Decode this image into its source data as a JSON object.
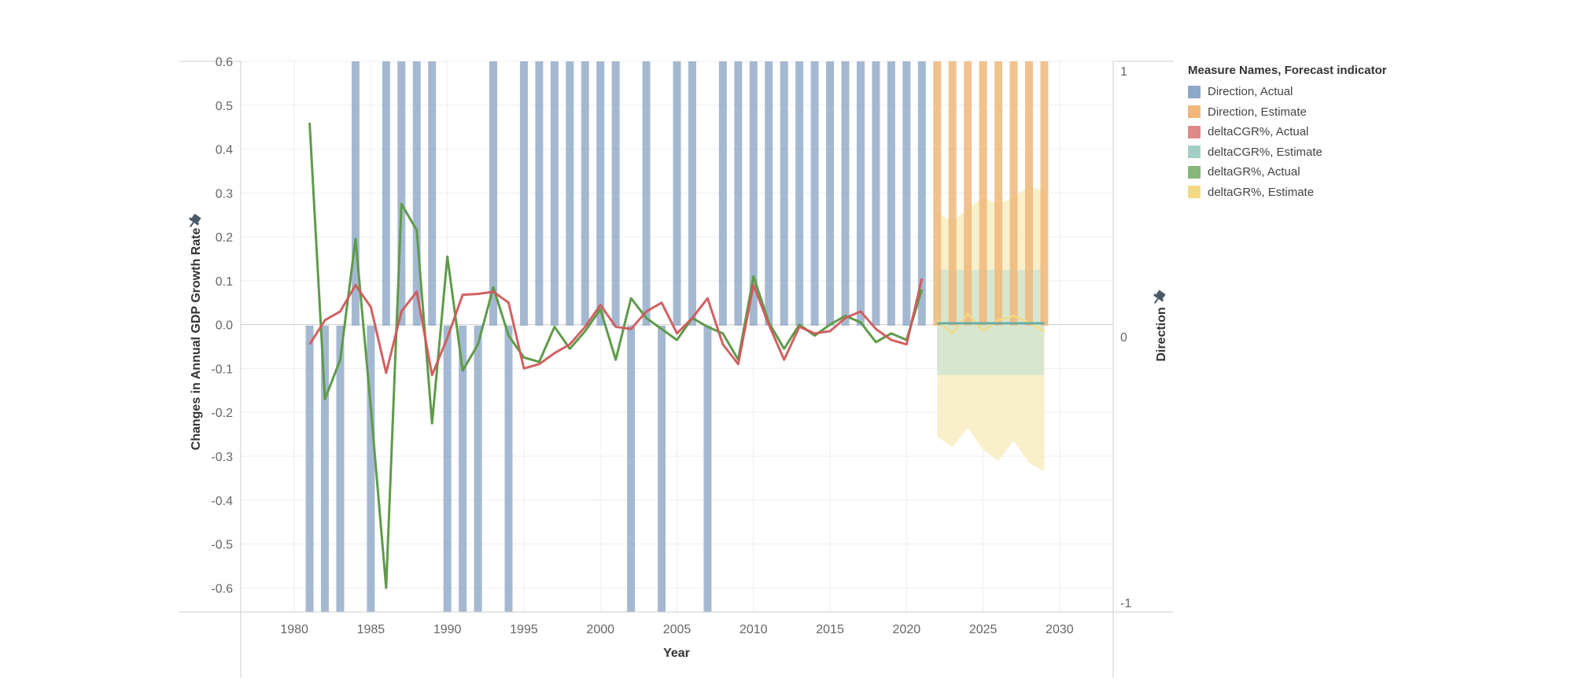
{
  "legend": {
    "title": "Measure Names, Forecast indicator",
    "items": [
      {
        "label": "Direction, Actual",
        "color": "#8da7c6"
      },
      {
        "label": "Direction, Estimate",
        "color": "#f0b77a"
      },
      {
        "label": "deltaCGR%, Actual",
        "color": "#df8888"
      },
      {
        "label": "deltaCGR%, Estimate",
        "color": "#a3cec6"
      },
      {
        "label": "deltaGR%, Actual",
        "color": "#88b67a"
      },
      {
        "label": "deltaGR%, Estimate",
        "color": "#f2da84"
      }
    ]
  },
  "chart_data": {
    "type": "combo",
    "xlabel": "Year",
    "ylabel": "Changes in Annual GDP Growth Rate",
    "y2label": "Direction",
    "xlim": [
      1976.5,
      2033.5
    ],
    "ylim": [
      -0.655,
      0.6
    ],
    "y2lim": [
      -1,
      1
    ],
    "x_ticks": [
      1980,
      1985,
      1990,
      1995,
      2000,
      2005,
      2010,
      2015,
      2020,
      2025,
      2030
    ],
    "y_ticks": [
      0.6,
      0.5,
      0.4,
      0.3,
      0.2,
      0.1,
      0.0,
      -0.1,
      -0.2,
      -0.3,
      -0.4,
      -0.5,
      -0.6
    ],
    "y_tick_labels": [
      "0.6",
      "0.5",
      "0.4",
      "0.3",
      "0.2",
      "0.1",
      "0.0",
      "-0.1",
      "-0.2",
      "-0.3",
      "-0.4",
      "-0.5",
      "-0.6"
    ],
    "y2_ticks": [
      1,
      0,
      -1
    ],
    "y2_tick_labels": [
      "1",
      "0",
      "-1"
    ],
    "grid": true,
    "legend_position": "right",
    "direction_actual": {
      "years": [
        1981,
        1982,
        1983,
        1984,
        1985,
        1986,
        1987,
        1988,
        1989,
        1990,
        1991,
        1992,
        1993,
        1994,
        1995,
        1996,
        1997,
        1998,
        1999,
        2000,
        2001,
        2002,
        2003,
        2004,
        2005,
        2006,
        2007,
        2008,
        2009,
        2010,
        2011,
        2012,
        2013,
        2014,
        2015,
        2016,
        2017,
        2018,
        2019,
        2020,
        2021
      ],
      "values": [
        -1,
        -1,
        -1,
        1,
        -1,
        1,
        1,
        1,
        1,
        -1,
        -1,
        -1,
        1,
        -1,
        1,
        1,
        1,
        1,
        1,
        1,
        1,
        -1,
        1,
        -1,
        1,
        1,
        -1,
        1,
        1,
        1,
        1,
        1,
        1,
        1,
        1,
        1,
        1,
        1,
        1,
        1,
        1
      ]
    },
    "direction_estimate": {
      "years": [
        2022,
        2023,
        2024,
        2025,
        2026,
        2027,
        2028,
        2029
      ],
      "values": [
        1,
        1,
        1,
        1,
        1,
        1,
        1,
        1
      ]
    },
    "deltaCGR_actual": {
      "years": [
        1981,
        1982,
        1983,
        1984,
        1985,
        1986,
        1987,
        1988,
        1989,
        1990,
        1991,
        1992,
        1993,
        1994,
        1995,
        1996,
        1997,
        1998,
        1999,
        2000,
        2001,
        2002,
        2003,
        2004,
        2005,
        2006,
        2007,
        2008,
        2009,
        2010,
        2011,
        2012,
        2013,
        2014,
        2015,
        2016,
        2017,
        2018,
        2019,
        2020,
        2021
      ],
      "values": [
        -0.045,
        0.01,
        0.03,
        0.09,
        0.04,
        -0.11,
        0.03,
        0.075,
        -0.115,
        -0.03,
        0.068,
        0.07,
        0.075,
        0.05,
        -0.1,
        -0.09,
        -0.065,
        -0.045,
        -0.005,
        0.045,
        -0.005,
        -0.01,
        0.03,
        0.05,
        -0.02,
        0.015,
        0.06,
        -0.045,
        -0.09,
        0.09,
        0.0,
        -0.08,
        -0.005,
        -0.02,
        -0.015,
        0.015,
        0.03,
        -0.01,
        -0.035,
        -0.045,
        0.105
      ]
    },
    "deltaGR_actual": {
      "years": [
        1981,
        1982,
        1983,
        1984,
        1985,
        1986,
        1987,
        1988,
        1989,
        1990,
        1991,
        1992,
        1993,
        1994,
        1995,
        1996,
        1997,
        1998,
        1999,
        2000,
        2001,
        2002,
        2003,
        2004,
        2005,
        2006,
        2007,
        2008,
        2009,
        2010,
        2011,
        2012,
        2013,
        2014,
        2015,
        2016,
        2017,
        2018,
        2019,
        2020,
        2021
      ],
      "values": [
        0.46,
        -0.17,
        -0.08,
        0.195,
        -0.19,
        -0.6,
        0.275,
        0.215,
        -0.225,
        0.155,
        -0.105,
        -0.045,
        0.085,
        -0.025,
        -0.075,
        -0.085,
        -0.005,
        -0.055,
        -0.015,
        0.035,
        -0.08,
        0.06,
        0.015,
        -0.01,
        -0.035,
        0.015,
        -0.005,
        -0.02,
        -0.08,
        0.11,
        0.005,
        -0.055,
        0.0,
        -0.025,
        0.0,
        0.02,
        0.005,
        -0.04,
        -0.02,
        -0.035,
        0.08
      ]
    },
    "deltaCGR_estimate": {
      "years": [
        2022,
        2023,
        2024,
        2025,
        2026,
        2027,
        2028,
        2029
      ],
      "values": [
        0.003,
        0.003,
        0.003,
        0.003,
        0.003,
        0.003,
        0.003,
        0.003
      ],
      "upper": [
        0.125,
        0.125,
        0.125,
        0.125,
        0.125,
        0.125,
        0.125,
        0.125
      ],
      "lower": [
        -0.115,
        -0.115,
        -0.115,
        -0.115,
        -0.115,
        -0.115,
        -0.115,
        -0.115
      ]
    },
    "deltaGR_estimate": {
      "years": [
        2022,
        2023,
        2024,
        2025,
        2026,
        2027,
        2028,
        2029
      ],
      "values": [
        0.01,
        -0.02,
        0.025,
        -0.015,
        0.01,
        0.02,
        0.005,
        -0.015
      ],
      "upper": [
        0.255,
        0.235,
        0.265,
        0.29,
        0.275,
        0.29,
        0.315,
        0.305
      ],
      "lower": [
        -0.255,
        -0.28,
        -0.235,
        -0.285,
        -0.31,
        -0.265,
        -0.315,
        -0.335
      ]
    },
    "colors": {
      "direction_actual": "#8da7c6",
      "direction_estimate": "#f0b77a",
      "deltaCGR_actual": "#d0585a",
      "deltaCGR_estimate": "#6aaba6",
      "deltaGR_actual": "#5f9a4a",
      "deltaGR_estimate": "#f2da84",
      "band_cgr": "#cfe3cf",
      "band_gr": "#f8edc2"
    }
  }
}
